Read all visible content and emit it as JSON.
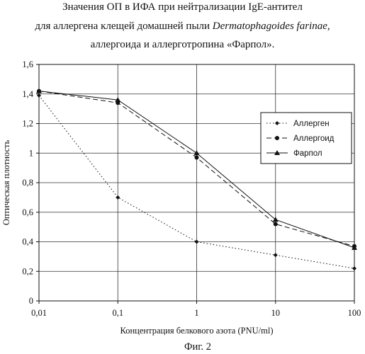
{
  "title": {
    "line1": "Значения ОП в ИФА при нейтрализации IgE-антител",
    "line2_pre": "для аллергена клещей домашней пыли ",
    "line2_italic": "Dermatophagoides farinae",
    "line2_post": ",",
    "line3": "аллергоида и аллерготропина «Фарпол»."
  },
  "caption": "Фиг. 2",
  "chart_data": {
    "type": "line",
    "xscale": "log",
    "x": [
      0.01,
      0.1,
      1,
      10,
      100
    ],
    "x_tick_labels": [
      "0,01",
      "0,1",
      "1",
      "10",
      "100"
    ],
    "ylim": [
      0,
      1.6
    ],
    "y_ticks": [
      0,
      0.2,
      0.4,
      0.6,
      0.8,
      1,
      1.2,
      1.4,
      1.6
    ],
    "y_tick_labels": [
      "0",
      "0,2",
      "0,4",
      "0,6",
      "0,8",
      "1",
      "1,2",
      "1,4",
      "1,6"
    ],
    "xlabel": "Концентрация белкового азота (PNU/ml)",
    "ylabel": "Оптическая плотность",
    "grid": true,
    "legend_position": "right",
    "series": [
      {
        "name": "Аллерген",
        "values": [
          1.39,
          0.7,
          0.4,
          0.31,
          0.22
        ],
        "line": "dotted",
        "marker": "diamond",
        "color": "#111111"
      },
      {
        "name": "Аллергоид",
        "values": [
          1.42,
          1.34,
          0.97,
          0.52,
          0.37
        ],
        "line": "dashed",
        "marker": "circle",
        "color": "#111111"
      },
      {
        "name": "Фарпол",
        "values": [
          1.42,
          1.36,
          1.0,
          0.55,
          0.36
        ],
        "line": "solid",
        "marker": "triangle",
        "color": "#111111"
      }
    ]
  }
}
